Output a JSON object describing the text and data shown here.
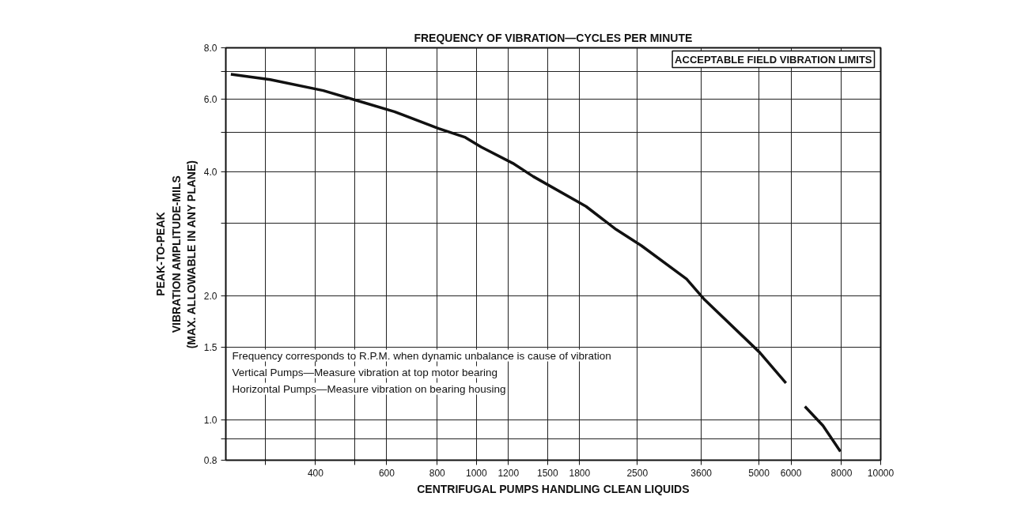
{
  "chart_data": {
    "type": "line",
    "title": "FREQUENCY OF VIBRATION—CYCLES PER MINUTE",
    "xlabel": "CENTRIFUGAL PUMPS HANDLING CLEAN LIQUIDS",
    "ylabel": "PEAK-TO-PEAK\nVIBRATION AMPLITUDE-MILS\n(MAX. ALLOWABLE IN ANY PLANE)",
    "annotations": [
      "ACCEPTABLE FIELD VIBRATION LIMITS",
      "Frequency corresponds to R.P.M. when dynamic unbalance is cause of vibration",
      "Vertical Pumps—Measure vibration at top motor bearing",
      "Horizontal Pumps—Measure vibration on bearing housing"
    ],
    "x": [
      247,
      309,
      418,
      524,
      627,
      806,
      939,
      1027,
      1230,
      1382,
      1867,
      2218,
      2560,
      3310,
      3667,
      5020,
      5830,
      6200,
      6494,
      7197,
      7950
    ],
    "series": [
      {
        "color": "#111111",
        "values": [
          6.9,
          6.7,
          6.3,
          5.9,
          5.6,
          5.1,
          4.85,
          4.6,
          4.2,
          3.9,
          3.3,
          2.9,
          2.65,
          2.2,
          1.96,
          1.46,
          1.23,
          null,
          1.08,
          0.97,
          0.84
        ]
      }
    ],
    "log": "xy",
    "xlim": [
      240,
      10000
    ],
    "ylim": [
      0.8,
      8.0
    ],
    "xticks": [
      {
        "value": 300,
        "label": null
      },
      400,
      {
        "value": 500,
        "label": null
      },
      600,
      800,
      1000,
      1200,
      1500,
      1800,
      2500,
      3600,
      5000,
      6000,
      8000,
      10000
    ],
    "yticks": [
      0.8,
      {
        "value": 0.9,
        "label": null
      },
      {
        "value": 1,
        "label": "1.0"
      },
      1.5,
      {
        "value": 2,
        "label": "2.0"
      },
      {
        "value": 3,
        "label": null
      },
      {
        "value": 4,
        "label": "4.0"
      },
      {
        "value": 5,
        "label": null
      },
      {
        "value": 6,
        "label": "6.0"
      },
      {
        "value": 7,
        "label": null
      },
      {
        "value": 8,
        "label": "8.0"
      }
    ],
    "grid": true,
    "marker": "none",
    "line_style": "solid"
  }
}
